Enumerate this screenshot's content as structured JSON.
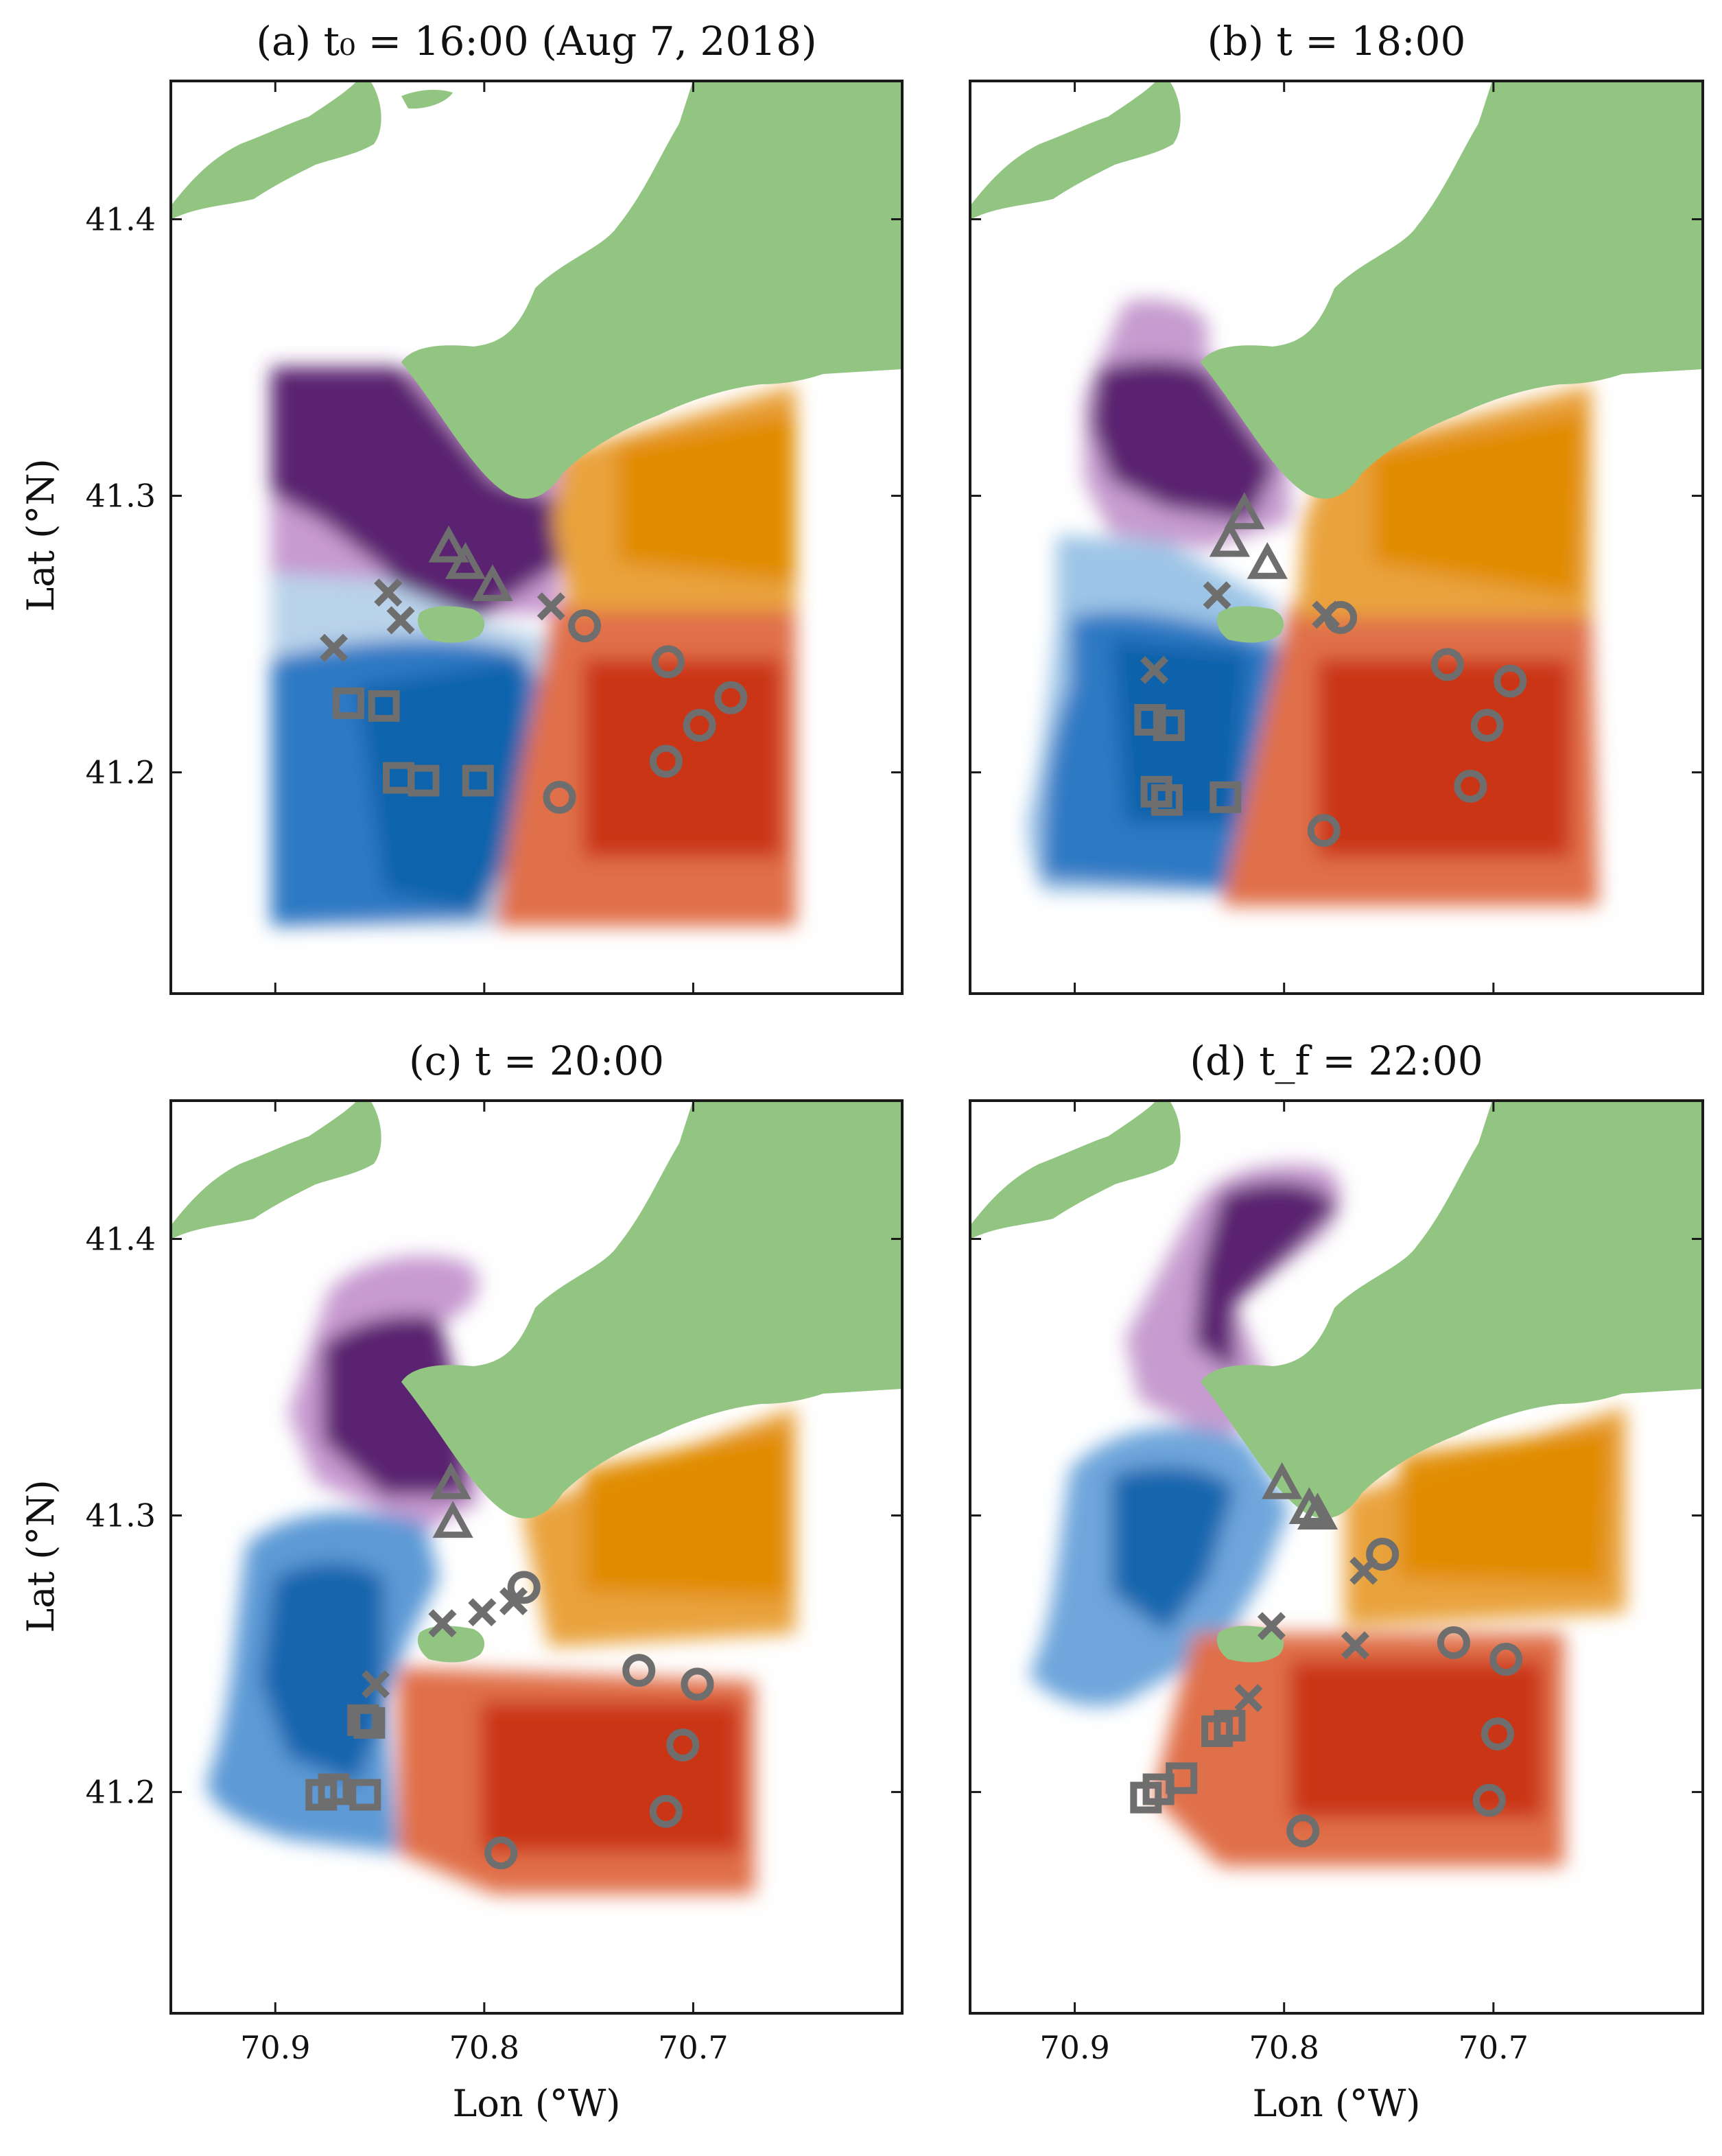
{
  "figure": {
    "xlabel": "Lon (°W)",
    "ylabel": "Lat (°N)",
    "lon_ticks": [
      70.9,
      70.8,
      70.7
    ],
    "lat_ticks": [
      41.4,
      41.3,
      41.2
    ],
    "lon_tick_labels": [
      "70.9",
      "70.8",
      "70.7"
    ],
    "lat_tick_labels": [
      "41.4",
      "41.3",
      "41.2"
    ],
    "lon_range_west": [
      70.95,
      70.6
    ],
    "lat_range": [
      41.12,
      41.45
    ]
  },
  "colors": {
    "land": "#93c582",
    "purple": "#4e1a63",
    "orange": "#e08a00",
    "blue": "#0b5fa8",
    "red": "#c22a0c",
    "marker": "#6e6e6e"
  },
  "legend_note": "marker shapes: circle, cross, triangle, square",
  "panels": [
    {
      "title": "(a) t₀ = 16:00 (Aug 7, 2018)",
      "markers": {
        "triangle": [
          [
            70.817,
            41.281
          ],
          [
            70.809,
            41.275
          ],
          [
            70.796,
            41.267
          ]
        ],
        "cross": [
          [
            70.846,
            41.265
          ],
          [
            70.84,
            41.255
          ],
          [
            70.872,
            41.245
          ],
          [
            70.768,
            41.26
          ]
        ],
        "circle": [
          [
            70.752,
            41.253
          ],
          [
            70.712,
            41.24
          ],
          [
            70.682,
            41.227
          ],
          [
            70.697,
            41.217
          ],
          [
            70.713,
            41.204
          ],
          [
            70.764,
            41.191
          ]
        ],
        "square": [
          [
            70.865,
            41.225
          ],
          [
            70.848,
            41.224
          ],
          [
            70.841,
            41.198
          ],
          [
            70.829,
            41.197
          ],
          [
            70.803,
            41.197
          ]
        ]
      }
    },
    {
      "title": "(b) t = 18:00",
      "markers": {
        "triangle": [
          [
            70.819,
            41.293
          ],
          [
            70.826,
            41.283
          ],
          [
            70.808,
            41.275
          ]
        ],
        "cross": [
          [
            70.832,
            41.264
          ],
          [
            70.862,
            41.237
          ],
          [
            70.78,
            41.257
          ]
        ],
        "circle": [
          [
            70.773,
            41.256
          ],
          [
            70.722,
            41.239
          ],
          [
            70.692,
            41.233
          ],
          [
            70.703,
            41.217
          ],
          [
            70.711,
            41.195
          ],
          [
            70.781,
            41.179
          ]
        ],
        "square": [
          [
            70.864,
            41.219
          ],
          [
            70.855,
            41.217
          ],
          [
            70.861,
            41.193
          ],
          [
            70.856,
            41.19
          ],
          [
            70.828,
            41.191
          ]
        ]
      }
    },
    {
      "title": "(c) t = 20:00",
      "markers": {
        "triangle": [
          [
            70.816,
            41.311
          ],
          [
            70.815,
            41.297
          ]
        ],
        "cross": [
          [
            70.82,
            41.261
          ],
          [
            70.801,
            41.265
          ],
          [
            70.786,
            41.269
          ],
          [
            70.852,
            41.239
          ]
        ],
        "circle": [
          [
            70.781,
            41.274
          ],
          [
            70.726,
            41.244
          ],
          [
            70.698,
            41.239
          ],
          [
            70.705,
            41.217
          ],
          [
            70.713,
            41.193
          ],
          [
            70.792,
            41.178
          ]
        ],
        "square": [
          [
            70.858,
            41.226
          ],
          [
            70.855,
            41.225
          ],
          [
            70.878,
            41.199
          ],
          [
            70.872,
            41.201
          ],
          [
            70.857,
            41.199
          ]
        ]
      }
    },
    {
      "title": "(d) t_f = 22:00",
      "markers": {
        "triangle": [
          [
            70.801,
            41.311
          ],
          [
            70.788,
            41.302
          ],
          [
            70.784,
            41.3
          ]
        ],
        "cross": [
          [
            70.762,
            41.28
          ],
          [
            70.806,
            41.26
          ],
          [
            70.766,
            41.253
          ],
          [
            70.817,
            41.234
          ]
        ],
        "circle": [
          [
            70.753,
            41.286
          ],
          [
            70.719,
            41.254
          ],
          [
            70.694,
            41.248
          ],
          [
            70.698,
            41.221
          ],
          [
            70.702,
            41.197
          ],
          [
            70.791,
            41.186
          ]
        ],
        "square": [
          [
            70.832,
            41.222
          ],
          [
            70.826,
            41.224
          ],
          [
            70.866,
            41.198
          ],
          [
            70.86,
            41.201
          ],
          [
            70.849,
            41.205
          ]
        ]
      }
    }
  ]
}
